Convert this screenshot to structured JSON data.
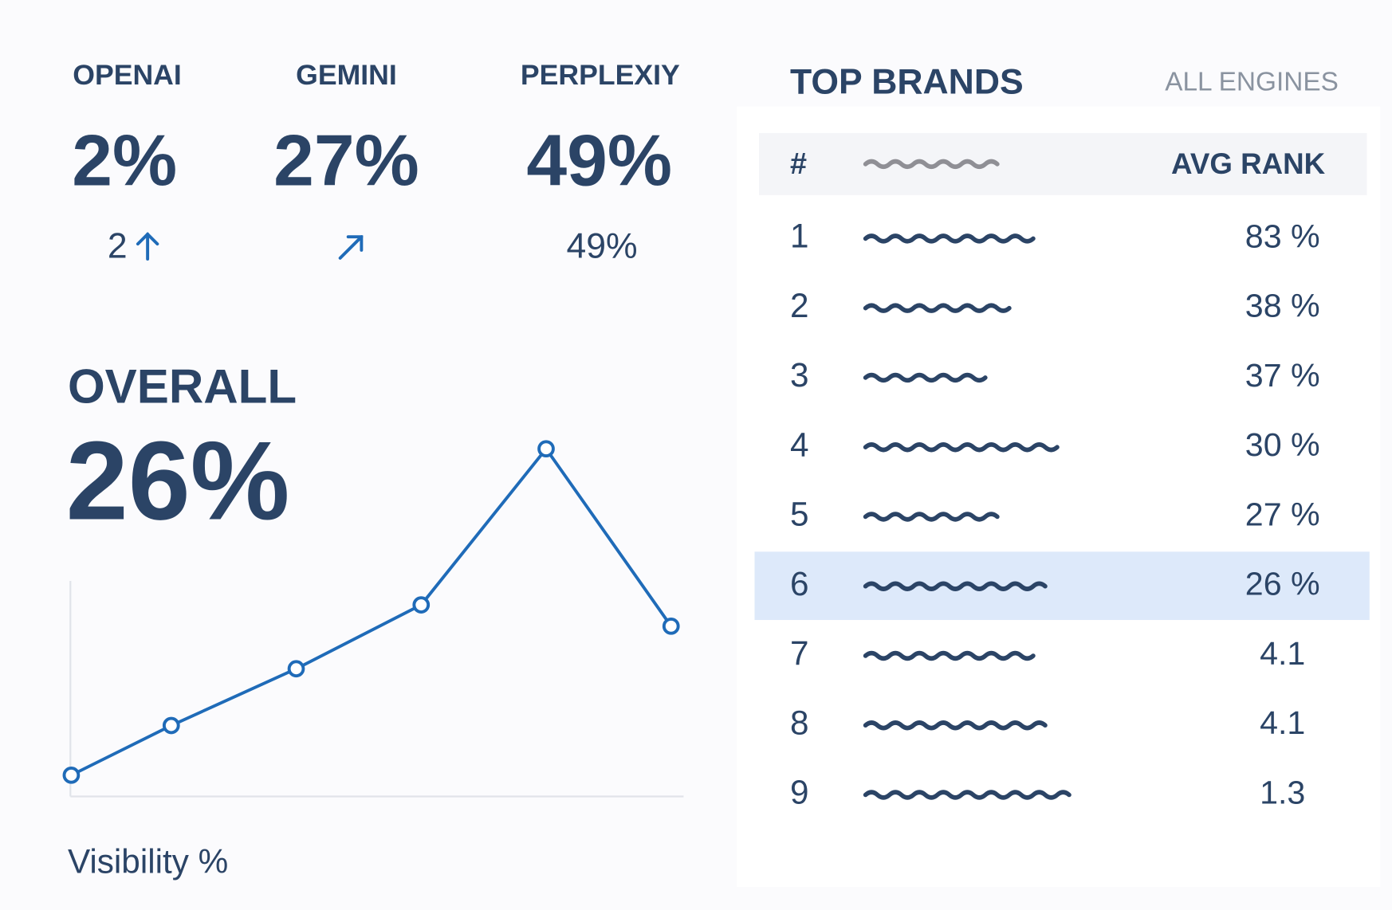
{
  "metrics": [
    {
      "label": "OPENAI",
      "value": "2%",
      "delta": "2"
    },
    {
      "label": "GEMINI",
      "value": "27%"
    },
    {
      "label": "PERPLEXIY",
      "value": "49%",
      "delta": "49%"
    }
  ],
  "overall": {
    "label": "OVERALL",
    "value": "26%"
  },
  "chart_data": {
    "type": "line",
    "xlabel": "Visibility %",
    "x": [
      0,
      0.8,
      1.8,
      2.8,
      3.8,
      4.8
    ],
    "values": [
      3,
      10,
      18,
      27,
      49,
      24
    ],
    "xlim": [
      0,
      4.9
    ],
    "ylim": [
      0,
      50
    ],
    "color": "#1f6bb8"
  },
  "top_brands": {
    "title": "TOP BRANDS",
    "filter": "ALL ENGINES",
    "columns": [
      "#",
      "AVG RANK"
    ],
    "rows": [
      {
        "rank": "1",
        "value": "83 %"
      },
      {
        "rank": "2",
        "value": "38 %"
      },
      {
        "rank": "3",
        "value": "37 %"
      },
      {
        "rank": "4",
        "value": "30 %"
      },
      {
        "rank": "5",
        "value": "27 %"
      },
      {
        "rank": "6",
        "value": "26 %",
        "highlighted": true
      },
      {
        "rank": "7",
        "value": "4.1"
      },
      {
        "rank": "8",
        "value": "4.1"
      },
      {
        "rank": "9",
        "value": "1.3"
      }
    ]
  }
}
